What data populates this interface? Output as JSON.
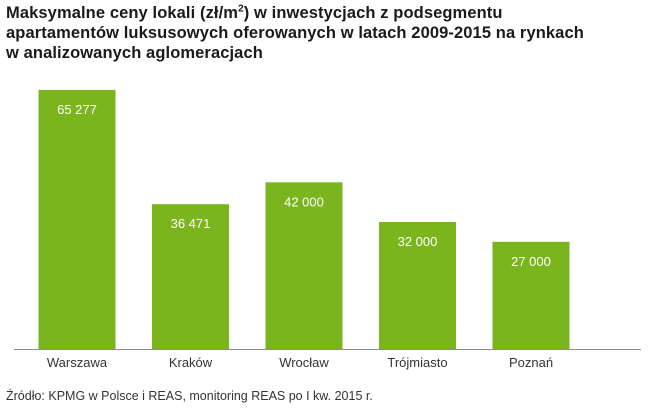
{
  "title": {
    "line1_before": "Maksymalne ceny lokali (zł/m",
    "line1_sup": "2",
    "line1_after": ") w inwestycjach z podsegmentu",
    "line2": "apartamentów luksusowych oferowanych w latach 2009-2015 na rynkach",
    "line3": "w analizowanych aglomeracjach"
  },
  "source": "Źródło: KPMG w Polsce i REAS, monitoring REAS po I kw. 2015 r.",
  "colors": {
    "bar": "#7ab51d",
    "bar_label": "#ffffff",
    "axis": "#8c8c8c",
    "category_label": "#333333"
  },
  "chart_data": {
    "type": "bar",
    "title": "Maksymalne ceny lokali (zł/m2) w inwestycjach z podsegmentu apartamentów luksusowych oferowanych w latach 2009-2015 na rynkach w analizowanych aglomeracjach",
    "categories": [
      "Warszawa",
      "Kraków",
      "Wrocław",
      "Trójmiasto",
      "Poznań"
    ],
    "values": [
      65277,
      36471,
      42000,
      32000,
      27000
    ],
    "value_labels": [
      "65 277",
      "36 471",
      "42 000",
      "32 000",
      "27 000"
    ],
    "xlabel": "",
    "ylabel": "",
    "ylim": [
      0,
      66000
    ],
    "grid": false,
    "legend": "none"
  }
}
